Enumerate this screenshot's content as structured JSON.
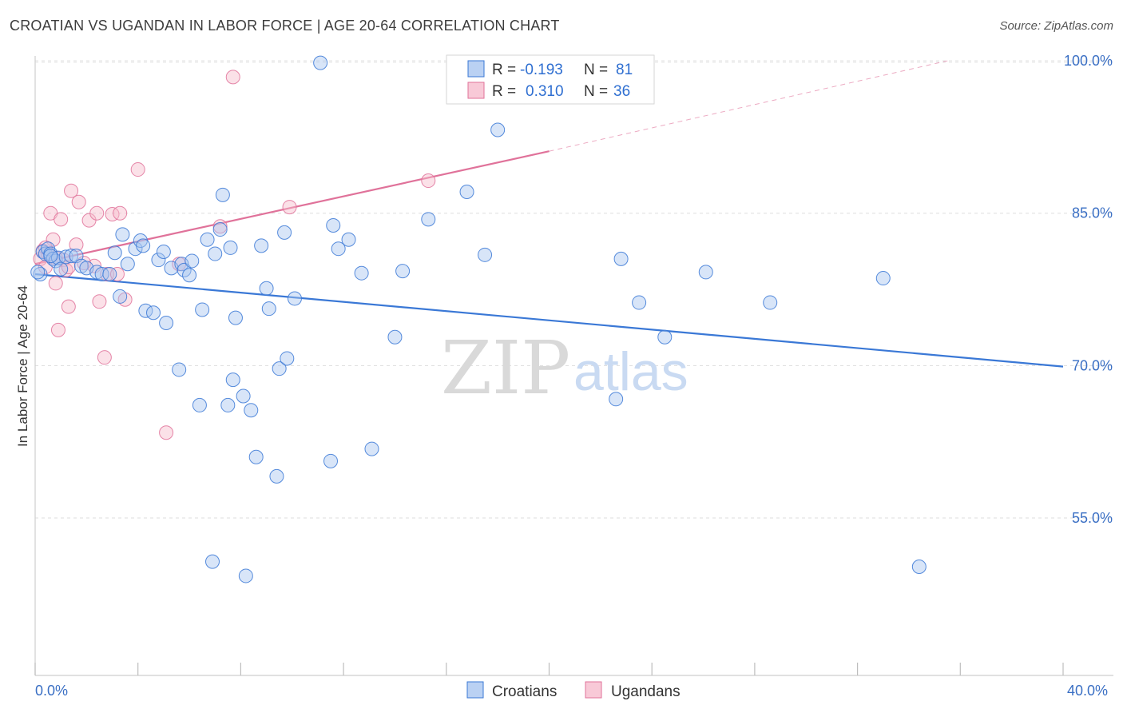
{
  "title": "CROATIAN VS UGANDAN IN LABOR FORCE | AGE 20-64 CORRELATION CHART",
  "source": "Source: ZipAtlas.com",
  "watermark": {
    "part1": "ZIP",
    "part2": "atlas"
  },
  "colors": {
    "blue": "#3a78d6",
    "pink": "#e0729a",
    "blue_fill": "#a9c6f0",
    "pink_fill": "#f6bccd",
    "tick": "#3a6fc4"
  },
  "legend": {
    "rows": [
      {
        "r_label": "R =",
        "r_value": "-0.193",
        "n_label": "N =",
        "n_value": "81"
      },
      {
        "r_label": "R =",
        "r_value": "0.310",
        "n_label": "N =",
        "n_value": "36"
      }
    ]
  },
  "chart_data": {
    "type": "scatter",
    "title": "CROATIAN VS UGANDAN IN LABOR FORCE | AGE 20-64 CORRELATION CHART",
    "xlabel": "",
    "ylabel": "In Labor Force | Age 20-64",
    "xlim": [
      0,
      40
    ],
    "ylim": [
      39.5,
      101.5
    ],
    "x_tick_labels": [
      "0.0%",
      "40.0%"
    ],
    "y_ticks": [
      55,
      70,
      85,
      100
    ],
    "y_tick_labels": [
      "55.0%",
      "70.0%",
      "85.0%",
      "100.0%"
    ],
    "grid": true,
    "legend_position": "top-center",
    "series": [
      {
        "name": "Croatians",
        "color": "#3a78d6",
        "r": -0.193,
        "n": 81,
        "trend": {
          "x": [
            0,
            40
          ],
          "y": [
            79.0,
            69.9
          ],
          "dashed_from": null
        },
        "points": [
          [
            0.2,
            79.0
          ],
          [
            0.3,
            81.2
          ],
          [
            0.4,
            81.0
          ],
          [
            0.5,
            81.5
          ],
          [
            0.6,
            81.0
          ],
          [
            0.7,
            80.5
          ],
          [
            0.8,
            80.3
          ],
          [
            0.9,
            80.6
          ],
          [
            1.0,
            79.5
          ],
          [
            1.2,
            80.7
          ],
          [
            1.4,
            80.8
          ],
          [
            1.6,
            80.8
          ],
          [
            1.8,
            79.8
          ],
          [
            2.0,
            79.6
          ],
          [
            2.4,
            79.2
          ],
          [
            2.6,
            79.0
          ],
          [
            2.9,
            79.0
          ],
          [
            3.4,
            82.9
          ],
          [
            3.1,
            81.1
          ],
          [
            3.3,
            76.8
          ],
          [
            3.6,
            80.0
          ],
          [
            3.9,
            81.5
          ],
          [
            4.1,
            82.3
          ],
          [
            4.2,
            81.8
          ],
          [
            4.3,
            75.4
          ],
          [
            4.6,
            75.2
          ],
          [
            4.8,
            80.4
          ],
          [
            5.0,
            81.2
          ],
          [
            5.1,
            74.2
          ],
          [
            5.3,
            79.6
          ],
          [
            5.6,
            69.6
          ],
          [
            5.7,
            80.0
          ],
          [
            5.8,
            79.4
          ],
          [
            6.0,
            78.9
          ],
          [
            6.1,
            80.3
          ],
          [
            6.4,
            66.1
          ],
          [
            6.5,
            75.5
          ],
          [
            6.7,
            82.4
          ],
          [
            6.9,
            50.7
          ],
          [
            7.0,
            81.0
          ],
          [
            7.2,
            83.4
          ],
          [
            7.3,
            86.8
          ],
          [
            7.5,
            66.1
          ],
          [
            7.6,
            81.6
          ],
          [
            7.7,
            68.6
          ],
          [
            7.8,
            74.7
          ],
          [
            8.1,
            67.0
          ],
          [
            8.4,
            65.6
          ],
          [
            8.6,
            61.0
          ],
          [
            8.8,
            81.8
          ],
          [
            8.2,
            49.3
          ],
          [
            9.0,
            77.6
          ],
          [
            9.1,
            75.6
          ],
          [
            9.4,
            59.1
          ],
          [
            9.5,
            69.7
          ],
          [
            9.7,
            83.1
          ],
          [
            9.8,
            70.7
          ],
          [
            10.1,
            76.6
          ],
          [
            11.1,
            99.8
          ],
          [
            11.5,
            60.6
          ],
          [
            11.6,
            83.8
          ],
          [
            11.8,
            81.5
          ],
          [
            12.2,
            82.4
          ],
          [
            12.7,
            79.1
          ],
          [
            13.1,
            61.8
          ],
          [
            14.0,
            72.8
          ],
          [
            14.3,
            79.3
          ],
          [
            15.3,
            84.4
          ],
          [
            16.8,
            87.1
          ],
          [
            17.5,
            80.9
          ],
          [
            18.0,
            93.2
          ],
          [
            22.6,
            66.7
          ],
          [
            22.8,
            80.5
          ],
          [
            23.5,
            76.2
          ],
          [
            24.5,
            72.8
          ],
          [
            26.1,
            79.2
          ],
          [
            28.6,
            76.2
          ],
          [
            33.0,
            78.6
          ],
          [
            34.4,
            50.2
          ],
          [
            0.1,
            79.2
          ],
          [
            0.6,
            80.8
          ]
        ]
      },
      {
        "name": "Ugandans",
        "color": "#e0729a",
        "r": 0.31,
        "n": 36,
        "trend": {
          "x": [
            0,
            20
          ],
          "y": [
            80.0,
            91.1
          ],
          "dashed_to": {
            "x": 35.5,
            "y": 100.0
          }
        },
        "points": [
          [
            0.2,
            80.5
          ],
          [
            0.3,
            81.3
          ],
          [
            0.4,
            79.7
          ],
          [
            0.5,
            81.0
          ],
          [
            0.6,
            85.0
          ],
          [
            0.7,
            82.4
          ],
          [
            0.8,
            78.1
          ],
          [
            0.9,
            73.5
          ],
          [
            1.0,
            84.4
          ],
          [
            1.1,
            80.4
          ],
          [
            1.2,
            79.4
          ],
          [
            1.3,
            75.8
          ],
          [
            1.4,
            87.2
          ],
          [
            1.6,
            81.9
          ],
          [
            1.7,
            86.1
          ],
          [
            1.9,
            80.1
          ],
          [
            2.1,
            84.3
          ],
          [
            2.3,
            79.8
          ],
          [
            2.4,
            85.0
          ],
          [
            2.5,
            76.3
          ],
          [
            2.7,
            70.8
          ],
          [
            2.8,
            79.0
          ],
          [
            3.0,
            84.9
          ],
          [
            3.2,
            79.0
          ],
          [
            3.3,
            85.0
          ],
          [
            3.5,
            76.5
          ],
          [
            4.0,
            89.3
          ],
          [
            5.1,
            63.4
          ],
          [
            5.6,
            80.0
          ],
          [
            7.2,
            83.7
          ],
          [
            7.7,
            98.4
          ],
          [
            9.9,
            85.6
          ],
          [
            15.3,
            88.2
          ],
          [
            0.4,
            81.6
          ],
          [
            1.3,
            79.7
          ],
          [
            0.8,
            80.6
          ]
        ]
      }
    ]
  },
  "bottom_legend": [
    {
      "label": "Croatians"
    },
    {
      "label": "Ugandans"
    }
  ]
}
